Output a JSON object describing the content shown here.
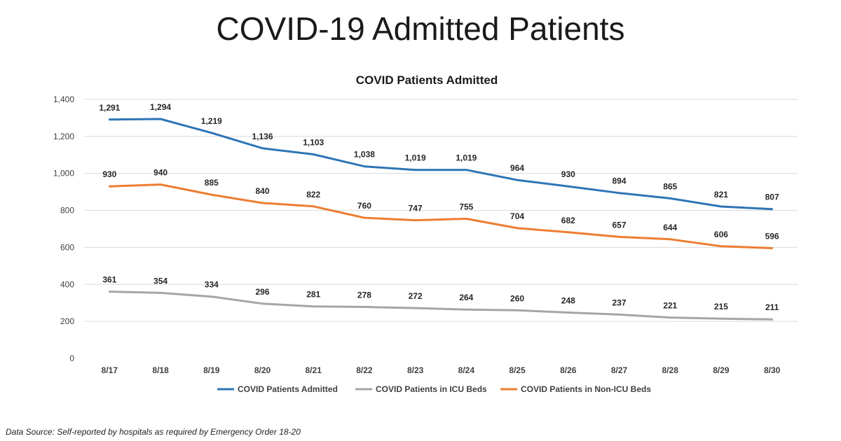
{
  "slide": {
    "title": "COVID-19 Admitted Patients",
    "source_note": "Data Source: Self-reported by hospitals as required by Emergency Order 18-20"
  },
  "chart_data": {
    "type": "line",
    "title": "COVID Patients Admitted",
    "xlabel": "",
    "ylabel": "",
    "categories": [
      "8/17",
      "8/18",
      "8/19",
      "8/20",
      "8/21",
      "8/22",
      "8/23",
      "8/24",
      "8/25",
      "8/26",
      "8/27",
      "8/28",
      "8/29",
      "8/30"
    ],
    "ylim": [
      0,
      1400
    ],
    "yticks": [
      0,
      200,
      400,
      600,
      800,
      1000,
      1200,
      1400
    ],
    "ytick_labels": [
      "0",
      "200",
      "400",
      "600",
      "800",
      "1,000",
      "1,200",
      "1,400"
    ],
    "grid": true,
    "legend_position": "bottom",
    "data_labels": true,
    "series": [
      {
        "name": "COVID Patients Admitted",
        "color": "#2e75b6",
        "values": [
          1291,
          1294,
          1219,
          1136,
          1103,
          1038,
          1019,
          1019,
          964,
          930,
          894,
          865,
          821,
          807
        ]
      },
      {
        "name": "COVID Patients in ICU Beds",
        "color": "#a5a5a5",
        "values": [
          361,
          354,
          334,
          296,
          281,
          278,
          272,
          264,
          260,
          248,
          237,
          221,
          215,
          211
        ]
      },
      {
        "name": "COVID Patients in Non-ICU Beds",
        "color": "#ed7d31",
        "values": [
          930,
          940,
          885,
          840,
          822,
          760,
          747,
          755,
          704,
          682,
          657,
          644,
          606,
          596
        ]
      }
    ]
  }
}
